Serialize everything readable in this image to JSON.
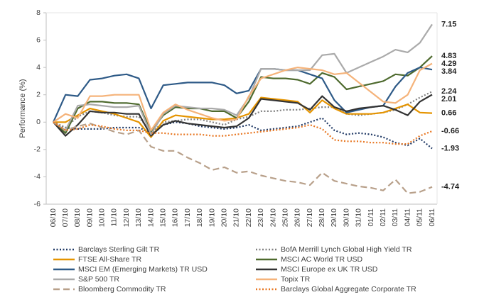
{
  "chart_data": {
    "type": "line",
    "y_label": "Performance (%)",
    "categories": [
      "06/10",
      "07/10",
      "08/10",
      "09/10",
      "10/10",
      "11/10",
      "12/10",
      "13/10",
      "14/10",
      "15/10",
      "16/10",
      "17/10",
      "18/10",
      "19/10",
      "20/10",
      "21/10",
      "22/10",
      "23/10",
      "24/10",
      "25/10",
      "26/10",
      "27/10",
      "28/10",
      "29/10",
      "30/10",
      "31/10",
      "01/11",
      "02/11",
      "03/11",
      "04/11",
      "05/11",
      "06/11"
    ],
    "ylim": [
      -6,
      8
    ],
    "yticks": [
      -6,
      -4,
      -2,
      0,
      2,
      4,
      6,
      8
    ],
    "grid": false,
    "series": [
      {
        "name": "Barclays Sterling Gilt TR",
        "color": "#1f3864",
        "dash": "dotted",
        "values": [
          0,
          -0.4,
          -0.5,
          -0.5,
          -0.5,
          -0.4,
          -0.4,
          -0.4,
          -0.8,
          -0.2,
          0.0,
          -0.1,
          -0.3,
          -0.4,
          -0.5,
          -0.4,
          -0.2,
          -0.6,
          -0.5,
          -0.4,
          -0.3,
          0.0,
          0.3,
          -0.6,
          -0.9,
          -0.8,
          -0.9,
          -1.1,
          -1.5,
          -1.7,
          -1.2,
          -1.93
        ]
      },
      {
        "name": "BofA Merrill Lynch Global High Yield TR",
        "color": "#808080",
        "dash": "dotted",
        "values": [
          0,
          -0.4,
          0.4,
          0.8,
          0.7,
          0.5,
          0.4,
          0.4,
          -0.8,
          0.0,
          0.1,
          0.2,
          0.2,
          0.0,
          -0.2,
          0.2,
          0.4,
          0.8,
          0.8,
          0.9,
          0.9,
          1.0,
          1.1,
          1.1,
          0.6,
          0.5,
          0.6,
          0.7,
          0.9,
          1.3,
          1.8,
          2.24
        ]
      },
      {
        "name": "FTSE All-Share TR",
        "color": "#e59400",
        "dash": "solid",
        "values": [
          0,
          0.0,
          0.5,
          1.0,
          0.8,
          0.6,
          0.3,
          0.0,
          -1.1,
          0.1,
          0.5,
          0.4,
          0.3,
          0.2,
          0.2,
          0.3,
          0.6,
          1.8,
          1.7,
          1.6,
          1.5,
          0.7,
          1.6,
          1.0,
          0.6,
          0.6,
          0.6,
          0.7,
          1.0,
          1.3,
          0.7,
          0.66
        ]
      },
      {
        "name": "MSCI AC World TR USD",
        "color": "#4e6a2e",
        "dash": "solid",
        "values": [
          0,
          -0.8,
          1.0,
          1.5,
          1.5,
          1.4,
          1.4,
          1.3,
          -0.7,
          0.5,
          1.1,
          1.0,
          1.0,
          0.8,
          0.8,
          0.3,
          1.5,
          3.3,
          3.2,
          3.2,
          3.1,
          2.8,
          3.6,
          3.3,
          2.4,
          2.6,
          2.8,
          3.0,
          3.5,
          3.4,
          4.0,
          4.83
        ]
      },
      {
        "name": "MSCI EM (Emerging Markets) TR USD",
        "color": "#2e5a87",
        "dash": "solid",
        "values": [
          0,
          2.0,
          1.9,
          3.1,
          3.2,
          3.4,
          3.5,
          3.2,
          1.0,
          2.7,
          2.8,
          2.9,
          2.9,
          2.9,
          2.7,
          2.1,
          2.3,
          3.9,
          3.9,
          3.8,
          3.8,
          3.5,
          3.2,
          1.6,
          0.7,
          0.9,
          1.1,
          1.2,
          2.6,
          3.6,
          4.0,
          3.84
        ]
      },
      {
        "name": "MSCI Europe ex UK TR USD",
        "color": "#333333",
        "dash": "solid",
        "values": [
          0,
          -1.0,
          -0.2,
          0.8,
          0.7,
          0.7,
          0.6,
          0.6,
          -1.0,
          -0.2,
          0.1,
          -0.1,
          -0.2,
          -0.3,
          -0.4,
          -0.3,
          0.3,
          1.7,
          1.6,
          1.5,
          1.4,
          0.9,
          1.9,
          1.1,
          0.8,
          1.0,
          1.1,
          1.2,
          0.9,
          0.5,
          1.5,
          2.01
        ]
      },
      {
        "name": "S&P 500 TR",
        "color": "#aaaaaa",
        "dash": "solid",
        "values": [
          0,
          -0.6,
          1.2,
          1.3,
          1.2,
          1.1,
          1.1,
          1.2,
          -0.9,
          0.6,
          1.2,
          1.1,
          1.0,
          1.0,
          0.9,
          0.5,
          1.8,
          3.9,
          3.9,
          3.8,
          3.8,
          3.8,
          4.9,
          5.0,
          3.6,
          4.0,
          4.4,
          4.8,
          5.3,
          5.1,
          5.8,
          7.15
        ]
      },
      {
        "name": "Topix TR",
        "color": "#f5b37a",
        "dash": "solid",
        "values": [
          0,
          0.6,
          0.3,
          1.9,
          1.9,
          2.0,
          2.0,
          2.0,
          -0.6,
          0.7,
          1.3,
          0.9,
          0.6,
          0.3,
          0.1,
          0.2,
          1.9,
          3.2,
          3.5,
          3.8,
          4.0,
          3.9,
          3.8,
          3.5,
          3.6,
          2.9,
          2.2,
          1.5,
          1.4,
          2.0,
          3.8,
          4.29
        ]
      },
      {
        "name": "Bloomberg Commodity TR",
        "color": "#b8a08a",
        "dash": "dashed",
        "values": [
          0,
          -0.6,
          -0.3,
          -0.1,
          -0.4,
          -0.7,
          -0.9,
          -0.6,
          -1.8,
          -2.1,
          -2.1,
          -2.6,
          -3.0,
          -3.5,
          -3.3,
          -3.7,
          -3.6,
          -3.9,
          -4.1,
          -4.3,
          -4.4,
          -4.6,
          -3.7,
          -4.3,
          -4.5,
          -4.7,
          -4.8,
          -5.0,
          -4.2,
          -5.2,
          -5.1,
          -4.74
        ]
      },
      {
        "name": "Barclays Global Aggregate Corporate TR",
        "color": "#e87722",
        "dash": "dotted",
        "values": [
          0,
          -0.6,
          -0.5,
          -0.2,
          -0.3,
          -0.5,
          -0.6,
          -0.6,
          -0.8,
          -0.8,
          -0.9,
          -0.9,
          -0.9,
          -1.0,
          -1.0,
          -0.9,
          -0.8,
          -0.7,
          -0.6,
          -0.5,
          -0.4,
          -0.2,
          -0.5,
          -1.3,
          -1.4,
          -1.4,
          -1.5,
          -1.5,
          -1.6,
          -1.6,
          -1.0,
          -0.66
        ]
      }
    ]
  }
}
